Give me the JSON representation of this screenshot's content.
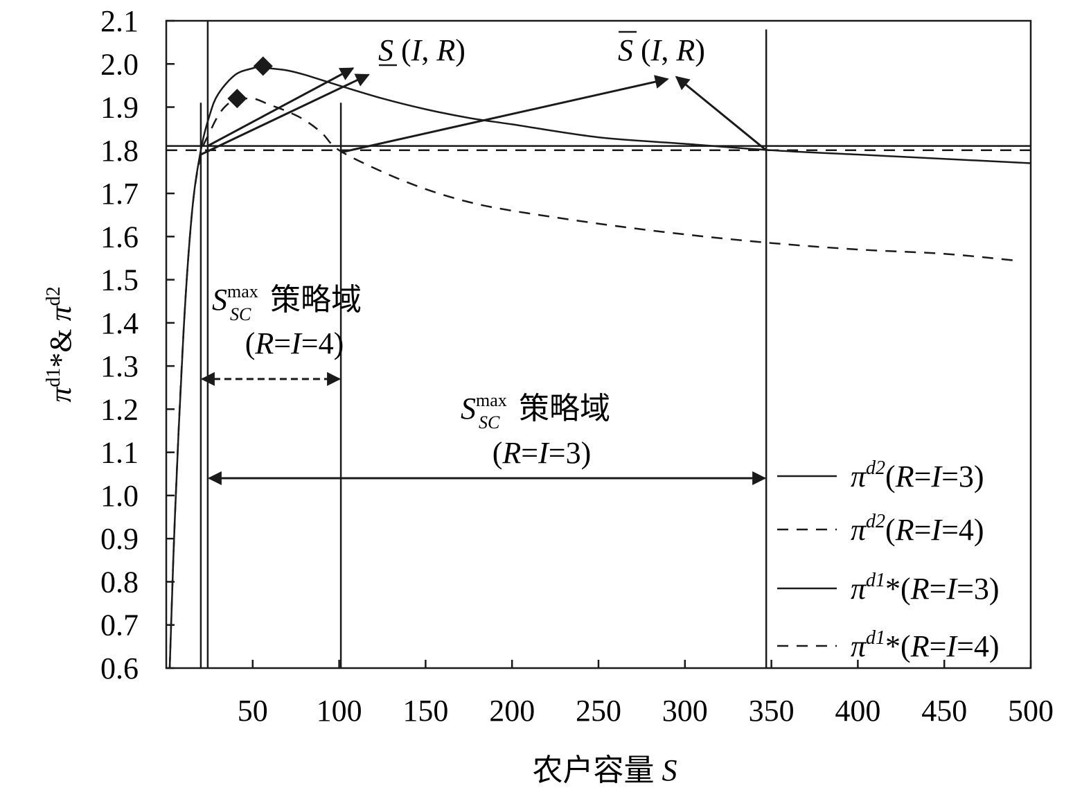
{
  "chart_data": {
    "type": "line",
    "xlabel_cn": "农户容量",
    "xlabel_sym": "S",
    "ylabel": "πd1*& πd2",
    "xlim": [
      0,
      500
    ],
    "ylim": [
      0.6,
      2.1
    ],
    "xticks": [
      "50",
      "100",
      "150",
      "200",
      "250",
      "300",
      "350",
      "400",
      "450",
      "500"
    ],
    "xtick_values": [
      50,
      100,
      150,
      200,
      250,
      300,
      350,
      400,
      450,
      500
    ],
    "yticks": [
      "0.6",
      "0.7",
      "0.8",
      "0.9",
      "1.0",
      "1.1",
      "1.2",
      "1.3",
      "1.4",
      "1.5",
      "1.6",
      "1.7",
      "1.8",
      "1.9",
      "2.0",
      "2.1"
    ],
    "ytick_values": [
      0.6,
      0.7,
      0.8,
      0.9,
      1.0,
      1.1,
      1.2,
      1.3,
      1.4,
      1.5,
      1.6,
      1.7,
      1.8,
      1.9,
      2.0,
      2.1
    ],
    "series": [
      {
        "name": "πd2(R=I=3)",
        "style": "solid",
        "x": [
          2,
          5,
          10,
          15,
          20,
          25,
          30,
          40,
          50,
          56,
          60,
          70,
          80,
          100,
          125,
          150,
          175,
          200,
          250,
          300,
          350,
          400,
          450,
          500
        ],
        "y": [
          0.6,
          0.95,
          1.38,
          1.66,
          1.8,
          1.88,
          1.93,
          1.975,
          1.99,
          1.995,
          1.99,
          1.985,
          1.975,
          1.95,
          1.92,
          1.895,
          1.875,
          1.86,
          1.83,
          1.815,
          1.8,
          1.79,
          1.78,
          1.77
        ]
      },
      {
        "name": "πd2(R=I=4)",
        "style": "dashed",
        "x": [
          2,
          5,
          10,
          15,
          20,
          25,
          30,
          35,
          40,
          50,
          60,
          70,
          80,
          90,
          100,
          125,
          150,
          175,
          200,
          250,
          300,
          350,
          400,
          450,
          490
        ],
        "y": [
          0.6,
          0.95,
          1.38,
          1.66,
          1.79,
          1.84,
          1.88,
          1.905,
          1.915,
          1.92,
          1.905,
          1.89,
          1.87,
          1.84,
          1.8,
          1.75,
          1.71,
          1.68,
          1.66,
          1.63,
          1.605,
          1.585,
          1.57,
          1.56,
          1.545
        ]
      },
      {
        "name": "πd1*(R=I=3)",
        "style": "solid",
        "x": [
          0,
          500
        ],
        "y": [
          1.81,
          1.81
        ]
      },
      {
        "name": "πd1*(R=I=4)",
        "style": "dashed",
        "x": [
          0,
          500
        ],
        "y": [
          1.8,
          1.8
        ]
      }
    ],
    "maxima_markers": [
      {
        "x": 56,
        "y": 1.995
      },
      {
        "x": 41,
        "y": 1.92
      }
    ],
    "vertical_lines": [
      {
        "x": 20,
        "y_top": 1.91
      },
      {
        "x": 24,
        "y_top": 2.1
      },
      {
        "x": 101,
        "y_top": 1.91
      },
      {
        "x": 347,
        "y_top": 2.08
      }
    ],
    "annotations": {
      "s_lower_label": "S (I, R)",
      "s_upper_label": "S (I, R)",
      "domain4_sym": "S",
      "domain4_sup": "max",
      "domain4_sub": "SC",
      "domain4_cn": "策略域",
      "domain4_cond": "(R=I=4)",
      "domain3_sym": "S",
      "domain3_sup": "max",
      "domain3_sub": "SC",
      "domain3_cn": "策略域",
      "domain3_cond": "(R=I=3)"
    },
    "pointer_arrows": [
      {
        "from": [
          24,
          1.81
        ],
        "to": [
          108,
          1.99
        ]
      },
      {
        "from": [
          20,
          1.79
        ],
        "to": [
          117,
          1.975
        ]
      },
      {
        "from": [
          101,
          1.795
        ],
        "to": [
          290,
          1.965
        ]
      },
      {
        "from": [
          347,
          1.8
        ],
        "to": [
          295,
          1.97
        ]
      }
    ],
    "domain_arrows": [
      {
        "name": "domain-r4",
        "x1": 20,
        "x2": 101,
        "y": 1.27,
        "style": "dashed"
      },
      {
        "name": "domain-r3",
        "x1": 24,
        "x2": 347,
        "y": 1.04,
        "style": "solid"
      }
    ],
    "legend": [
      {
        "style": "solid",
        "sym": "π",
        "sup": "d2",
        "cond": "(R=I=3)"
      },
      {
        "style": "dashed",
        "sym": "π",
        "sup": "d2",
        "cond": "(R=I=4)"
      },
      {
        "style": "solid",
        "sym": "π",
        "sup": "d1",
        "star": "*",
        "cond": "(R=I=3)"
      },
      {
        "style": "dashed",
        "sym": "π",
        "sup": "d1",
        "star": "*",
        "cond": "(R=I=4)"
      }
    ],
    "legend_position": "bottom-right",
    "grid": false
  }
}
